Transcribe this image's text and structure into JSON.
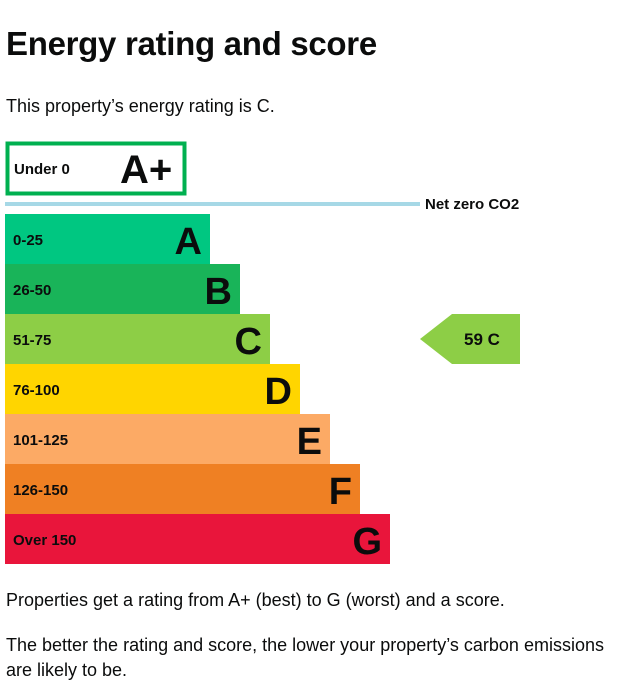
{
  "heading": "Energy rating and score",
  "intro_text": "This property’s energy rating is C.",
  "footer_text_1": "Properties get a rating from A+ (best) to G (worst) and a score.",
  "footer_text_2": "The better the rating and score, the lower your property’s carbon emissions are likely to be.",
  "chart_data": {
    "type": "bar",
    "bands": [
      {
        "letter": "A+",
        "range": "Under 0",
        "color": "#ffffff",
        "border": "#00b050",
        "letter_color": "#0b0c0c"
      },
      {
        "letter": "A",
        "range": "0-25",
        "color": "#00c781",
        "letter_color": "#0b0c0c"
      },
      {
        "letter": "B",
        "range": "26-50",
        "color": "#19b459",
        "letter_color": "#0b0c0c"
      },
      {
        "letter": "C",
        "range": "51-75",
        "color": "#8dce46",
        "letter_color": "#0b0c0c"
      },
      {
        "letter": "D",
        "range": "76-100",
        "color": "#ffd500",
        "letter_color": "#0b0c0c"
      },
      {
        "letter": "E",
        "range": "101-125",
        "color": "#fcaa65",
        "letter_color": "#0b0c0c"
      },
      {
        "letter": "F",
        "range": "126-150",
        "color": "#ef8023",
        "letter_color": "#0b0c0c"
      },
      {
        "letter": "G",
        "range": "Over 150",
        "color": "#e9153b",
        "letter_color": "#0b0c0c"
      }
    ],
    "net_zero_label": "Net zero CO2",
    "net_zero_color": "#a6d8e6",
    "current": {
      "score": 59,
      "letter": "C",
      "label": "59 C",
      "band": "C",
      "color": "#8dce46"
    }
  }
}
